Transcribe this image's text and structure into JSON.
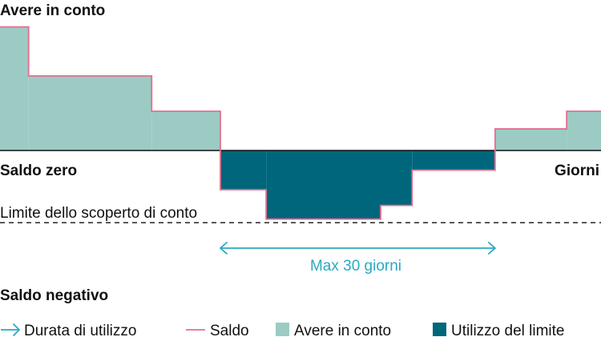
{
  "chart_data": {
    "type": "area",
    "title": "",
    "labels": {
      "top": "Avere in conto",
      "zero_line": "Saldo zero",
      "x_axis_end": "Giorni",
      "limit_line": "Limite dello scoperto di conto",
      "bottom": "Saldo negativo",
      "duration": "Max 30 giorni"
    },
    "ylim": [
      -3.6,
      6.3
    ],
    "xlim": [
      0,
      21
    ],
    "overdraft_limit": -3.6,
    "balance_steps": [
      {
        "x0": 0,
        "x1": 1,
        "y": 6.3
      },
      {
        "x0": 1,
        "x1": 5.3,
        "y": 3.8
      },
      {
        "x0": 5.3,
        "x1": 7.7,
        "y": 2.0
      },
      {
        "x0": 7.7,
        "x1": 9.3,
        "y": -2.0
      },
      {
        "x0": 9.3,
        "x1": 13.3,
        "y": -3.5
      },
      {
        "x0": 13.3,
        "x1": 14.4,
        "y": -2.8
      },
      {
        "x0": 14.4,
        "x1": 17.3,
        "y": -1.0
      },
      {
        "x0": 17.3,
        "x1": 19.8,
        "y": 1.1
      },
      {
        "x0": 19.8,
        "x1": 21,
        "y": 2.0
      }
    ],
    "duration_range": [
      7.7,
      17.3
    ],
    "legend": [
      {
        "key": "arrow",
        "label": "Durata di utilizzo",
        "color": "#2aa9c2"
      },
      {
        "key": "line",
        "label": "Saldo",
        "color": "#e26f8f"
      },
      {
        "key": "positive",
        "label": "Avere in conto",
        "color": "#9ccbc4"
      },
      {
        "key": "negative",
        "label": "Utilizzo del limite",
        "color": "#00667c"
      }
    ],
    "colors": {
      "positive_fill": "#9ccbc4",
      "negative_fill": "#00667c",
      "balance_line": "#e26f8f",
      "duration_arrow": "#2aa9c2",
      "axis": "#111111"
    }
  }
}
